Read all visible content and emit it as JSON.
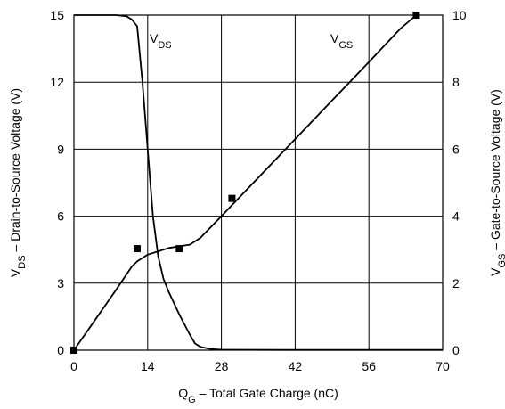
{
  "chart_data": {
    "type": "line",
    "title": "",
    "xlabel": {
      "main": "Q",
      "sub": "G",
      "rest": " – Total Gate Charge (nC)"
    },
    "ylabel_left": {
      "main": "V",
      "sub": "DS",
      "rest": " – Drain-to-Source Voltage (V)"
    },
    "ylabel_right": {
      "main": "V",
      "sub": "GS",
      "rest": " – Gate-to-Source Voltage (V)"
    },
    "xlim": [
      0,
      70
    ],
    "ylim_left": [
      0,
      15
    ],
    "ylim_right": [
      0,
      10
    ],
    "x_ticks": [
      "0",
      "14",
      "28",
      "42",
      "56",
      "70"
    ],
    "y_left_ticks": [
      "0",
      "3",
      "6",
      "9",
      "12",
      "15"
    ],
    "y_right_ticks": [
      "0",
      "2",
      "4",
      "6",
      "8",
      "10"
    ],
    "grid": true,
    "series": [
      {
        "name": {
          "main": "V",
          "sub": "DS"
        },
        "axis": "left",
        "x": [
          0,
          8,
          10,
          11,
          12,
          13,
          14,
          15,
          16,
          17,
          18,
          20,
          22,
          23,
          24,
          26,
          28,
          40,
          70
        ],
        "y": [
          15,
          15,
          14.95,
          14.8,
          14.5,
          12,
          9,
          6,
          4.2,
          3.2,
          2.6,
          1.6,
          0.7,
          0.3,
          0.15,
          0.05,
          0.02,
          0.01,
          0.01
        ]
      },
      {
        "name": {
          "main": "V",
          "sub": "GS"
        },
        "axis": "right",
        "x": [
          0,
          4,
          8,
          11,
          12,
          14,
          16,
          18,
          20,
          22,
          24,
          28,
          42,
          56,
          62,
          65
        ],
        "y": [
          0,
          0.9,
          1.8,
          2.5,
          2.65,
          2.85,
          2.95,
          3.05,
          3.1,
          3.15,
          3.35,
          4.0,
          6.3,
          8.6,
          9.6,
          10.0
        ]
      }
    ],
    "markers": {
      "axis": "right",
      "x": [
        0,
        12,
        20,
        30,
        65
      ],
      "y": [
        0,
        3.03,
        3.03,
        4.53,
        10.0
      ]
    }
  }
}
